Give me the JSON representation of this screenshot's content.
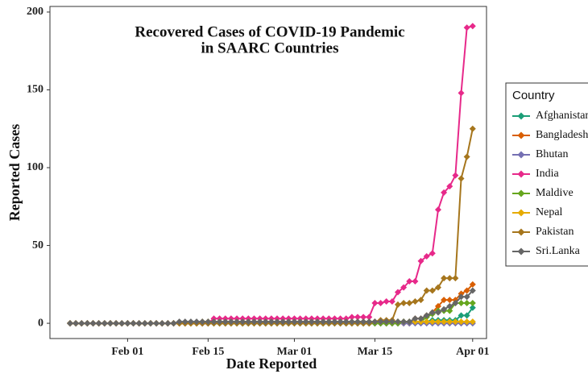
{
  "chart_data": {
    "type": "line",
    "title": [
      "Recovered Cases of COVID-19 Pandemic",
      "in SAARC Countries"
    ],
    "x_label": "Date Reported",
    "y_label": "Reported Cases",
    "legend_title": "Country",
    "legend": "right",
    "x": [
      "Jan 22",
      "Jan 23",
      "Jan 24",
      "Jan 25",
      "Jan 26",
      "Jan 27",
      "Jan 28",
      "Jan 29",
      "Jan 30",
      "Jan 31",
      "Feb 01",
      "Feb 02",
      "Feb 03",
      "Feb 04",
      "Feb 05",
      "Feb 06",
      "Feb 07",
      "Feb 08",
      "Feb 09",
      "Feb 10",
      "Feb 11",
      "Feb 12",
      "Feb 13",
      "Feb 14",
      "Feb 15",
      "Feb 16",
      "Feb 17",
      "Feb 18",
      "Feb 19",
      "Feb 20",
      "Feb 21",
      "Feb 22",
      "Feb 23",
      "Feb 24",
      "Feb 25",
      "Feb 26",
      "Feb 27",
      "Feb 28",
      "Feb 29",
      "Mar 01",
      "Mar 02",
      "Mar 03",
      "Mar 04",
      "Mar 05",
      "Mar 06",
      "Mar 07",
      "Mar 08",
      "Mar 09",
      "Mar 10",
      "Mar 11",
      "Mar 12",
      "Mar 13",
      "Mar 14",
      "Mar 15",
      "Mar 16",
      "Mar 17",
      "Mar 18",
      "Mar 19",
      "Mar 20",
      "Mar 21",
      "Mar 22",
      "Mar 23",
      "Mar 24",
      "Mar 25",
      "Mar 26",
      "Mar 27",
      "Mar 28",
      "Mar 29",
      "Mar 30",
      "Mar 31",
      "Apr 01"
    ],
    "xticks": [
      "Feb 01",
      "Feb 15",
      "Mar 01",
      "Mar 15",
      "Apr 01"
    ],
    "ylim": [
      -9.8,
      203.6
    ],
    "yticks": [
      0,
      50,
      100,
      150,
      200
    ],
    "series": [
      {
        "name": "Afghanistan",
        "color": "#1b9e77",
        "values": [
          0,
          0,
          0,
          0,
          0,
          0,
          0,
          0,
          0,
          0,
          0,
          0,
          0,
          0,
          0,
          0,
          0,
          0,
          0,
          0,
          0,
          0,
          0,
          0,
          0,
          0,
          0,
          0,
          0,
          0,
          0,
          0,
          0,
          0,
          0,
          0,
          0,
          0,
          0,
          0,
          0,
          0,
          0,
          0,
          0,
          0,
          0,
          0,
          0,
          0,
          0,
          0,
          0,
          0,
          0,
          0,
          1,
          1,
          1,
          1,
          1,
          1,
          1,
          2,
          2,
          2,
          2,
          2,
          5,
          5,
          10
        ]
      },
      {
        "name": "Bangladesh",
        "color": "#d95f02",
        "values": [
          0,
          0,
          0,
          0,
          0,
          0,
          0,
          0,
          0,
          0,
          0,
          0,
          0,
          0,
          0,
          0,
          0,
          0,
          0,
          0,
          0,
          0,
          0,
          0,
          0,
          0,
          0,
          0,
          0,
          0,
          0,
          0,
          0,
          0,
          0,
          0,
          0,
          0,
          0,
          0,
          0,
          0,
          0,
          0,
          0,
          0,
          0,
          0,
          0,
          0,
          0,
          0,
          0,
          0,
          0,
          0,
          0,
          0,
          0,
          0,
          3,
          3,
          5,
          7,
          11,
          15,
          15,
          15,
          19,
          21,
          25
        ]
      },
      {
        "name": "Bhutan",
        "color": "#7570b3",
        "values": [
          0,
          0,
          0,
          0,
          0,
          0,
          0,
          0,
          0,
          0,
          0,
          0,
          0,
          0,
          0,
          0,
          0,
          0,
          0,
          0,
          0,
          0,
          0,
          0,
          0,
          0,
          0,
          0,
          0,
          0,
          0,
          0,
          0,
          0,
          0,
          0,
          0,
          0,
          0,
          0,
          0,
          0,
          0,
          0,
          0,
          0,
          0,
          0,
          0,
          0,
          0,
          0,
          0,
          0,
          0,
          0,
          0,
          0,
          0,
          0,
          0,
          0,
          0,
          0,
          0,
          0,
          0,
          0,
          0,
          0,
          0
        ]
      },
      {
        "name": "India",
        "color": "#e7298a",
        "values": [
          0,
          0,
          0,
          0,
          0,
          0,
          0,
          0,
          0,
          0,
          0,
          0,
          0,
          0,
          0,
          0,
          0,
          0,
          0,
          0,
          0,
          0,
          0,
          0,
          0,
          3,
          3,
          3,
          3,
          3,
          3,
          3,
          3,
          3,
          3,
          3,
          3,
          3,
          3,
          3,
          3,
          3,
          3,
          3,
          3,
          3,
          3,
          3,
          3,
          4,
          4,
          4,
          4,
          13,
          13,
          14,
          14,
          20,
          23,
          27,
          27,
          40,
          43,
          45,
          73,
          84,
          88,
          95,
          148,
          190,
          191
        ]
      },
      {
        "name": "Maldive",
        "color": "#66a61e",
        "values": [
          0,
          0,
          0,
          0,
          0,
          0,
          0,
          0,
          0,
          0,
          0,
          0,
          0,
          0,
          0,
          0,
          0,
          0,
          0,
          0,
          0,
          0,
          0,
          0,
          0,
          0,
          0,
          0,
          0,
          0,
          0,
          0,
          0,
          0,
          0,
          0,
          0,
          0,
          0,
          0,
          0,
          0,
          0,
          0,
          0,
          0,
          0,
          0,
          0,
          0,
          0,
          0,
          0,
          0,
          0,
          0,
          0,
          0,
          1,
          1,
          1,
          1,
          4,
          6,
          8,
          8,
          8,
          13,
          13,
          13,
          13
        ]
      },
      {
        "name": "Nepal",
        "color": "#e6ab02",
        "values": [
          0,
          0,
          0,
          0,
          0,
          0,
          0,
          0,
          0,
          0,
          0,
          0,
          0,
          0,
          0,
          0,
          0,
          0,
          0,
          0,
          0,
          0,
          0,
          1,
          1,
          1,
          1,
          1,
          1,
          1,
          1,
          1,
          1,
          1,
          1,
          1,
          1,
          1,
          1,
          1,
          1,
          1,
          1,
          1,
          1,
          1,
          1,
          1,
          1,
          1,
          1,
          1,
          1,
          1,
          1,
          1,
          1,
          1,
          1,
          1,
          1,
          1,
          1,
          1,
          1,
          1,
          1,
          1,
          1,
          1,
          1
        ]
      },
      {
        "name": "Pakistan",
        "color": "#a6761d",
        "values": [
          0,
          0,
          0,
          0,
          0,
          0,
          0,
          0,
          0,
          0,
          0,
          0,
          0,
          0,
          0,
          0,
          0,
          0,
          0,
          0,
          0,
          0,
          0,
          0,
          0,
          0,
          0,
          0,
          0,
          0,
          0,
          0,
          0,
          0,
          0,
          0,
          0,
          0,
          0,
          0,
          0,
          0,
          0,
          0,
          0,
          0,
          0,
          0,
          0,
          0,
          0,
          0,
          0,
          1,
          2,
          2,
          2,
          12,
          13,
          13,
          14,
          15,
          21,
          21,
          23,
          29,
          29,
          29,
          93,
          107,
          125
        ]
      },
      {
        "name": "Sri.Lanka",
        "color": "#666666",
        "values": [
          0,
          0,
          0,
          0,
          0,
          0,
          0,
          0,
          0,
          0,
          0,
          0,
          0,
          0,
          0,
          0,
          0,
          0,
          0,
          1,
          1,
          1,
          1,
          1,
          1,
          1,
          1,
          1,
          1,
          1,
          1,
          1,
          1,
          1,
          1,
          1,
          1,
          1,
          1,
          1,
          1,
          1,
          1,
          1,
          1,
          1,
          1,
          1,
          1,
          1,
          1,
          1,
          1,
          1,
          1,
          1,
          1,
          1,
          1,
          1,
          3,
          3,
          5,
          7,
          7,
          9,
          11,
          13,
          17,
          17,
          21
        ]
      }
    ]
  }
}
